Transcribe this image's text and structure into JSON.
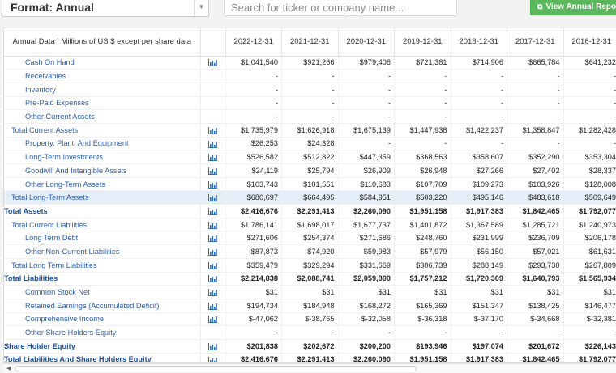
{
  "toolbar": {
    "format_label": "Format: Annual",
    "search_placeholder": "Search for ticker or company name...",
    "view_button_label": "View Annual Reports"
  },
  "table": {
    "header_label": "Annual Data | Millions of US $ except per share data",
    "years": [
      "2022-12-31",
      "2021-12-31",
      "2020-12-31",
      "2019-12-31",
      "2018-12-31",
      "2017-12-31",
      "2016-12-31"
    ],
    "rows": [
      {
        "label": "Cash On Hand",
        "level": 2,
        "chart": true,
        "values": [
          "$1,041,540",
          "$921,266",
          "$979,406",
          "$721,381",
          "$714,906",
          "$665,784",
          "$641,232"
        ]
      },
      {
        "label": "Receivables",
        "level": 2,
        "chart": false,
        "values": [
          "-",
          "-",
          "-",
          "-",
          "-",
          "-",
          "-"
        ]
      },
      {
        "label": "Inventory",
        "level": 2,
        "chart": false,
        "values": [
          "-",
          "-",
          "-",
          "-",
          "-",
          "-",
          "-"
        ]
      },
      {
        "label": "Pre-Paid Expenses",
        "level": 2,
        "chart": false,
        "values": [
          "-",
          "-",
          "-",
          "-",
          "-",
          "-",
          "-"
        ]
      },
      {
        "label": "Other Current Assets",
        "level": 2,
        "chart": false,
        "values": [
          "-",
          "-",
          "-",
          "-",
          "-",
          "-",
          "-"
        ]
      },
      {
        "label": "Total Current Assets",
        "level": 1,
        "chart": true,
        "values": [
          "$1,735,979",
          "$1,626,918",
          "$1,675,139",
          "$1,447,938",
          "$1,422,237",
          "$1,358,847",
          "$1,282,428"
        ]
      },
      {
        "label": "Property, Plant, And Equipment",
        "level": 2,
        "chart": true,
        "values": [
          "$26,253",
          "$24,328",
          "-",
          "-",
          "-",
          "-",
          "-"
        ]
      },
      {
        "label": "Long-Term Investments",
        "level": 2,
        "chart": true,
        "values": [
          "$526,582",
          "$512,822",
          "$447,359",
          "$368,563",
          "$358,607",
          "$352,290",
          "$353,304"
        ]
      },
      {
        "label": "Goodwill And Intangible Assets",
        "level": 2,
        "chart": true,
        "values": [
          "$24,119",
          "$25,794",
          "$26,909",
          "$26,948",
          "$27,266",
          "$27,402",
          "$28,337"
        ]
      },
      {
        "label": "Other Long-Term Assets",
        "level": 2,
        "chart": true,
        "values": [
          "$103,743",
          "$101,551",
          "$110,683",
          "$107,709",
          "$109,273",
          "$103,926",
          "$128,008"
        ]
      },
      {
        "label": "Total Long-Term Assets",
        "level": 1,
        "chart": true,
        "highlight": true,
        "values": [
          "$680,697",
          "$664,495",
          "$584,951",
          "$503,220",
          "$495,146",
          "$483,618",
          "$509,649"
        ]
      },
      {
        "label": "Total Assets",
        "level": 0,
        "chart": true,
        "values": [
          "$2,416,676",
          "$2,291,413",
          "$2,260,090",
          "$1,951,158",
          "$1,917,383",
          "$1,842,465",
          "$1,792,077"
        ]
      },
      {
        "label": "Total Current Liabilities",
        "level": 1,
        "chart": true,
        "values": [
          "$1,786,141",
          "$1,698,017",
          "$1,677,737",
          "$1,401,872",
          "$1,367,589",
          "$1,285,721",
          "$1,240,973"
        ]
      },
      {
        "label": "Long Term Debt",
        "level": 2,
        "chart": true,
        "values": [
          "$271,606",
          "$254,374",
          "$271,686",
          "$248,760",
          "$231,999",
          "$236,709",
          "$206,178"
        ]
      },
      {
        "label": "Other Non-Current Liabilities",
        "level": 2,
        "chart": true,
        "values": [
          "$87,873",
          "$74,920",
          "$59,983",
          "$57,979",
          "$56,150",
          "$57,021",
          "$61,631"
        ]
      },
      {
        "label": "Total Long Term Liabilities",
        "level": 1,
        "chart": true,
        "values": [
          "$359,479",
          "$329,294",
          "$331,669",
          "$306,739",
          "$288,149",
          "$293,730",
          "$267,809"
        ]
      },
      {
        "label": "Total Liabilities",
        "level": 0,
        "chart": true,
        "values": [
          "$2,214,838",
          "$2,088,741",
          "$2,059,890",
          "$1,757,212",
          "$1,720,309",
          "$1,640,793",
          "$1,565,934"
        ]
      },
      {
        "label": "Common Stock Net",
        "level": 2,
        "chart": true,
        "values": [
          "$31",
          "$31",
          "$31",
          "$31",
          "$31",
          "$31",
          "$31"
        ]
      },
      {
        "label": "Retained Earnings (Accumulated Deficit)",
        "level": 2,
        "chart": true,
        "values": [
          "$194,734",
          "$184,948",
          "$168,272",
          "$165,369",
          "$151,347",
          "$138,425",
          "$146,477"
        ]
      },
      {
        "label": "Comprehensive Income",
        "level": 2,
        "chart": true,
        "values": [
          "$-47,062",
          "$-38,765",
          "$-32,058",
          "$-36,318",
          "$-37,170",
          "$-34,668",
          "$-32,381"
        ]
      },
      {
        "label": "Other Share Holders Equity",
        "level": 2,
        "chart": false,
        "values": [
          "-",
          "-",
          "-",
          "-",
          "-",
          "-",
          "-"
        ]
      },
      {
        "label": "Share Holder Equity",
        "level": 0,
        "chart": true,
        "values": [
          "$201,838",
          "$202,672",
          "$200,200",
          "$193,946",
          "$197,074",
          "$201,672",
          "$226,143"
        ]
      },
      {
        "label": "Total Liabilities And Share Holders Equity",
        "level": 0,
        "chart": true,
        "values": [
          "$2,416,676",
          "$2,291,413",
          "$2,260,090",
          "$1,951,158",
          "$1,917,383",
          "$1,842,465",
          "$1,792,077"
        ]
      }
    ]
  },
  "colors": {
    "link": "#2f5fae",
    "accent_green": "#5cb85c",
    "row_highlight": "#e4eef8"
  }
}
